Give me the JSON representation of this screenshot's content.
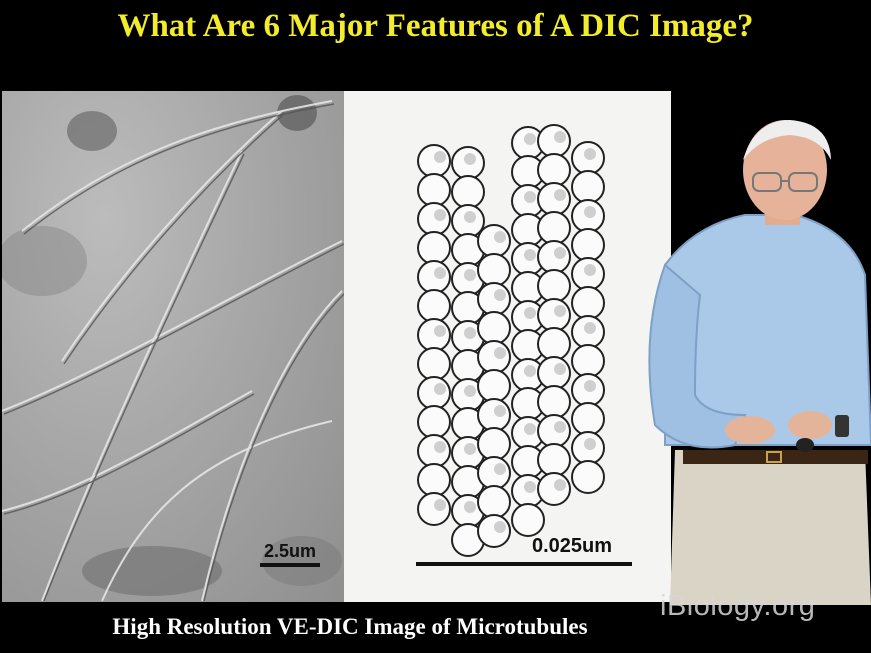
{
  "slide": {
    "title": "What Are 6 Major Features of A DIC Image?",
    "caption": "High Resolution VE-DIC Image of Microtubules",
    "watermark": "iBiology.org"
  },
  "micrograph": {
    "scale_label": "2.5um"
  },
  "diagram": {
    "scale_label": "0.025um"
  },
  "colors": {
    "title": "#f2ec2a",
    "background": "#000000",
    "caption": "#ffffff"
  }
}
